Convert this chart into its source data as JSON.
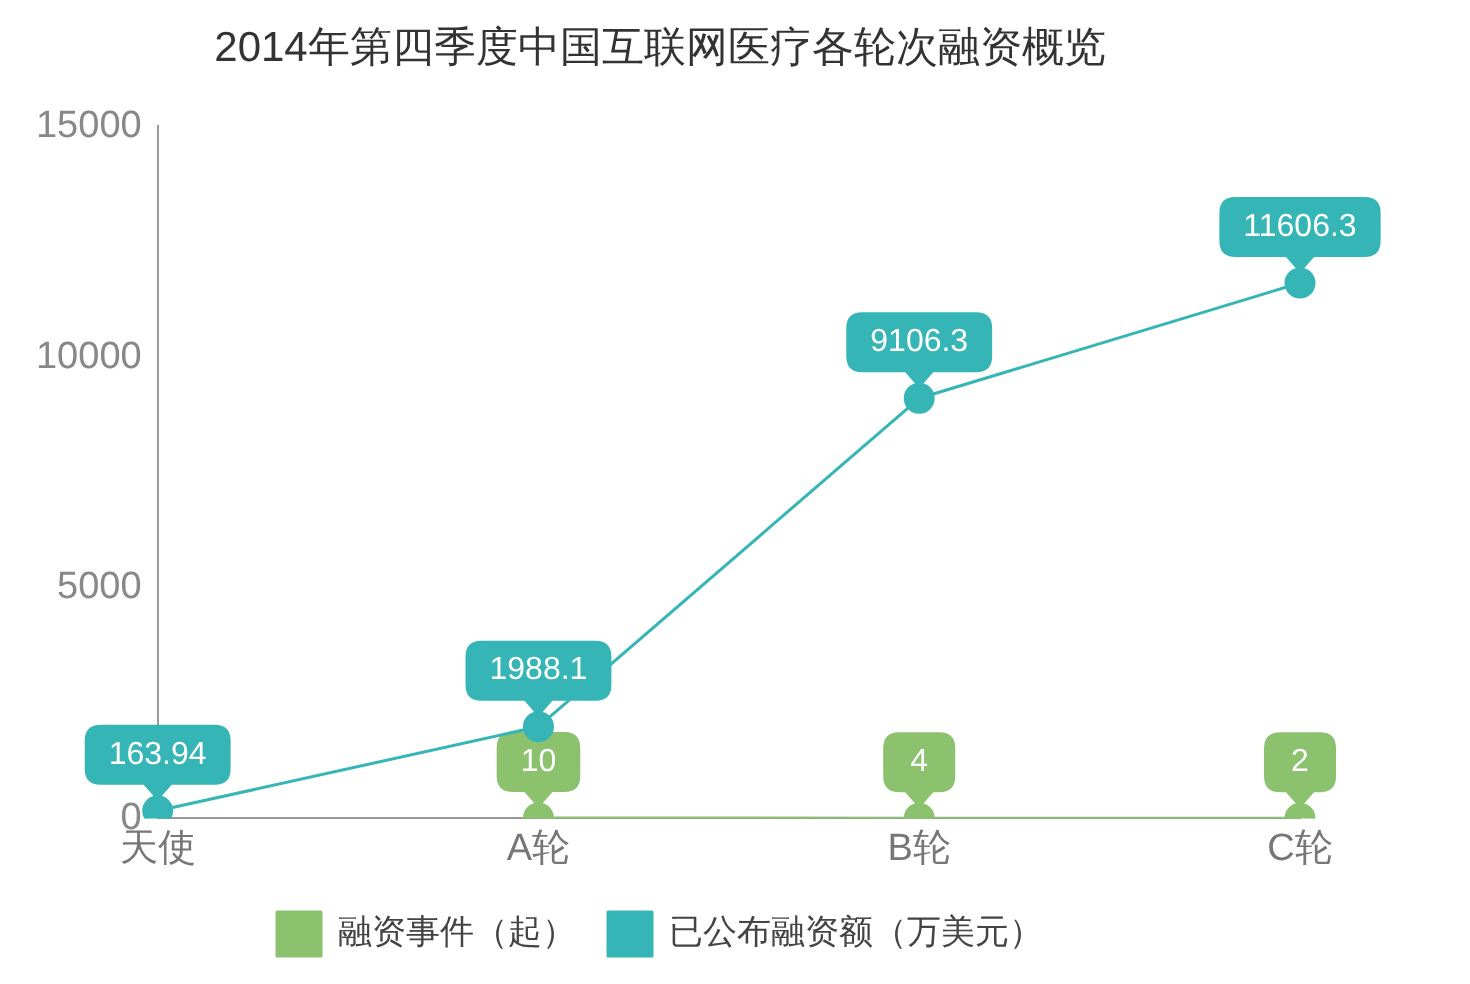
{
  "chart_data": {
    "type": "line",
    "title": "2014年第四季度中国互联网医疗各轮次融资概览",
    "categories": [
      "天使",
      "A轮",
      "B轮",
      "C轮"
    ],
    "series": [
      {
        "name": "融资事件（起）",
        "color": "#8cc16e",
        "values": [
          null,
          10,
          4,
          2
        ]
      },
      {
        "name": "已公布融资额（万美元）",
        "color": "#35b5b5",
        "values": [
          163.94,
          1988.1,
          9106.3,
          11606.3
        ]
      }
    ],
    "ylim": [
      0,
      15000
    ],
    "yticks": [
      0,
      5000,
      10000,
      15000
    ],
    "grid": false,
    "legend": "bottom",
    "marker": "circle",
    "line_style": "solid",
    "data_labels": true
  }
}
